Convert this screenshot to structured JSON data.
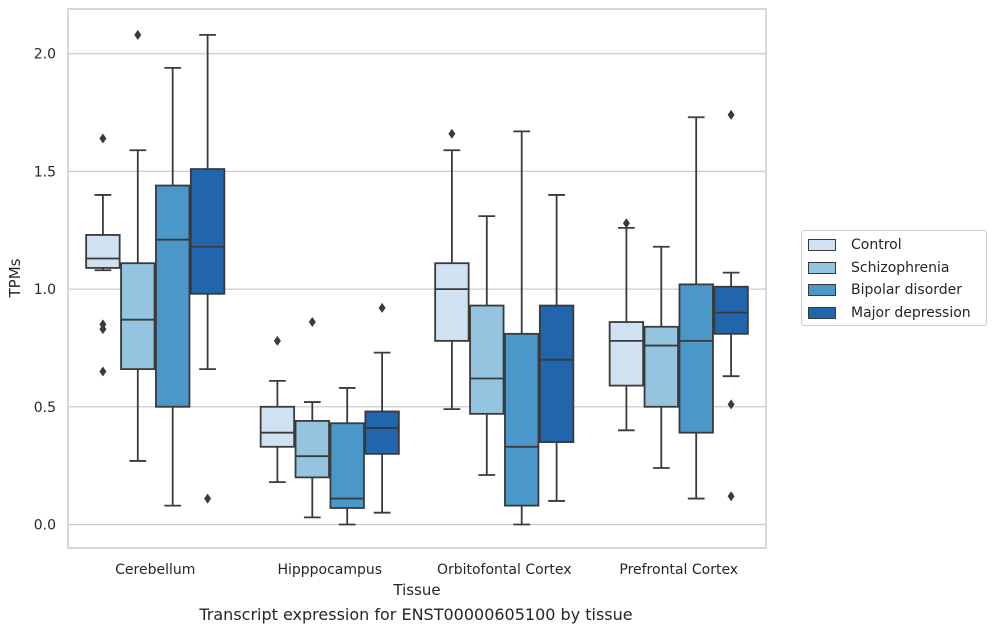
{
  "chart_data": {
    "type": "box",
    "xlabel": "Tissue",
    "ylabel": "TPMs",
    "caption": "Transcript expression for ENST00000605100 by tissue",
    "ylim": [
      -0.1,
      2.19
    ],
    "yticks": [
      "0.0",
      "0.5",
      "1.0",
      "1.5",
      "2.0"
    ],
    "ytick_values": [
      0.0,
      0.5,
      1.0,
      1.5,
      2.0
    ],
    "grid": "horizontal",
    "legend_position": "right",
    "categories": [
      "Cerebellum",
      "Hipppocampus",
      "Orbitofontal Cortex",
      "Prefrontal Cortex"
    ],
    "series": [
      {
        "name": "Control",
        "color": "#d0e1f2",
        "boxes": [
          {
            "whislo": 1.08,
            "q1": 1.09,
            "med": 1.13,
            "q3": 1.23,
            "whishi": 1.4,
            "fliers": [
              1.64,
              0.85,
              0.83,
              0.65
            ]
          },
          {
            "whislo": 0.18,
            "q1": 0.33,
            "med": 0.39,
            "q3": 0.5,
            "whishi": 0.61,
            "fliers": [
              0.78
            ]
          },
          {
            "whislo": 0.49,
            "q1": 0.78,
            "med": 1.0,
            "q3": 1.11,
            "whishi": 1.59,
            "fliers": [
              1.66
            ]
          },
          {
            "whislo": 0.4,
            "q1": 0.59,
            "med": 0.78,
            "q3": 0.86,
            "whishi": 1.26,
            "fliers": [
              1.28
            ]
          }
        ]
      },
      {
        "name": "Schizophrenia",
        "color": "#94c4df",
        "boxes": [
          {
            "whislo": 0.27,
            "q1": 0.66,
            "med": 0.87,
            "q3": 1.11,
            "whishi": 1.59,
            "fliers": [
              2.08
            ]
          },
          {
            "whislo": 0.03,
            "q1": 0.2,
            "med": 0.29,
            "q3": 0.44,
            "whishi": 0.52,
            "fliers": [
              0.86
            ]
          },
          {
            "whislo": 0.21,
            "q1": 0.47,
            "med": 0.62,
            "q3": 0.93,
            "whishi": 1.31,
            "fliers": []
          },
          {
            "whislo": 0.24,
            "q1": 0.5,
            "med": 0.76,
            "q3": 0.84,
            "whishi": 1.18,
            "fliers": []
          }
        ]
      },
      {
        "name": "Bipolar disorder",
        "color": "#4a98c9",
        "boxes": [
          {
            "whislo": 0.08,
            "q1": 0.5,
            "med": 1.21,
            "q3": 1.44,
            "whishi": 1.94,
            "fliers": []
          },
          {
            "whislo": 0.0,
            "q1": 0.07,
            "med": 0.11,
            "q3": 0.43,
            "whishi": 0.58,
            "fliers": []
          },
          {
            "whislo": 0.0,
            "q1": 0.08,
            "med": 0.33,
            "q3": 0.81,
            "whishi": 1.67,
            "fliers": []
          },
          {
            "whislo": 0.11,
            "q1": 0.39,
            "med": 0.78,
            "q3": 1.02,
            "whishi": 1.73,
            "fliers": []
          }
        ]
      },
      {
        "name": "Major depression",
        "color": "#2166ac",
        "boxes": [
          {
            "whislo": 0.66,
            "q1": 0.98,
            "med": 1.18,
            "q3": 1.51,
            "whishi": 2.08,
            "fliers": [
              0.11
            ]
          },
          {
            "whislo": 0.05,
            "q1": 0.3,
            "med": 0.41,
            "q3": 0.48,
            "whishi": 0.73,
            "fliers": [
              0.92
            ]
          },
          {
            "whislo": 0.1,
            "q1": 0.35,
            "med": 0.7,
            "q3": 0.93,
            "whishi": 1.4,
            "fliers": []
          },
          {
            "whislo": 0.63,
            "q1": 0.81,
            "med": 0.9,
            "q3": 1.01,
            "whishi": 1.07,
            "fliers": [
              1.74,
              0.51,
              0.12
            ]
          }
        ]
      }
    ]
  }
}
